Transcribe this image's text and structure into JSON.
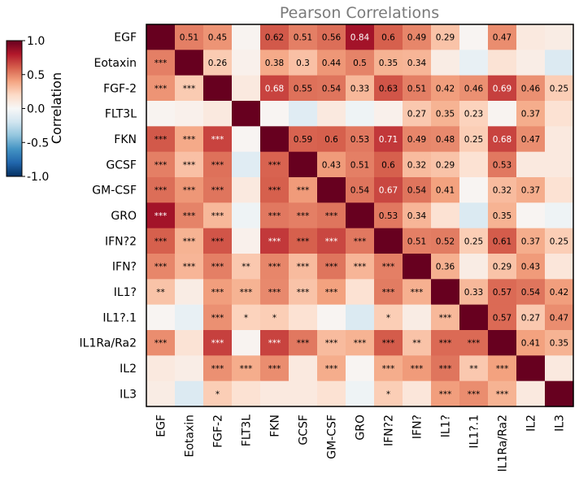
{
  "chart_data": {
    "type": "heatmap",
    "title": "Pearson Correlations",
    "variables": [
      "EGF",
      "Eotaxin",
      "FGF-2",
      "FLT3L",
      "FKN",
      "GCSF",
      "GM-CSF",
      "GRO",
      "IFN?2",
      "IFN?",
      "IL1?",
      "IL1?.1",
      "IL1Ra/Ra2",
      "IL2",
      "IL3"
    ],
    "colorbar": {
      "label": "Correlation",
      "range": [
        -1.0,
        1.0
      ],
      "ticks": [
        "1.0",
        "0.5",
        "0.0",
        "-0.5",
        "-1.0"
      ],
      "tick_values": [
        1.0,
        0.5,
        0.0,
        -0.5,
        -1.0
      ],
      "colormap": [
        "#053061",
        "#2166ac",
        "#4393c3",
        "#92c5de",
        "#d1e5f0",
        "#f7f7f7",
        "#fddbc7",
        "#f4a582",
        "#d6604d",
        "#b2182b",
        "#67001f"
      ]
    },
    "values": [
      [
        1.0,
        0.51,
        0.45,
        0.03,
        0.62,
        0.51,
        0.56,
        0.84,
        0.6,
        0.49,
        0.29,
        0.02,
        0.47,
        0.1,
        0.08
      ],
      [
        0.51,
        1.0,
        0.26,
        0.05,
        0.38,
        0.3,
        0.44,
        0.5,
        0.35,
        0.34,
        0.08,
        -0.08,
        0.14,
        0.07,
        -0.14
      ],
      [
        0.45,
        0.26,
        1.0,
        0.1,
        0.68,
        0.55,
        0.54,
        0.33,
        0.63,
        0.51,
        0.42,
        0.46,
        0.69,
        0.46,
        0.25
      ],
      [
        0.03,
        0.05,
        0.1,
        1.0,
        0.02,
        -0.12,
        0.1,
        -0.05,
        0.05,
        0.27,
        0.35,
        0.23,
        0.03,
        0.37,
        0.15
      ],
      [
        0.62,
        0.38,
        0.68,
        0.02,
        1.0,
        0.59,
        0.6,
        0.53,
        0.71,
        0.49,
        0.48,
        0.25,
        0.68,
        0.47,
        0.1
      ],
      [
        0.51,
        0.3,
        0.55,
        -0.12,
        0.59,
        1.0,
        0.43,
        0.51,
        0.6,
        0.32,
        0.29,
        0.15,
        0.53,
        0.1,
        0.1
      ],
      [
        0.56,
        0.44,
        0.54,
        0.1,
        0.6,
        0.43,
        1.0,
        0.54,
        0.67,
        0.54,
        0.41,
        0.02,
        0.32,
        0.37,
        0.15
      ],
      [
        0.84,
        0.5,
        0.33,
        -0.05,
        0.53,
        0.51,
        0.54,
        1.0,
        0.53,
        0.34,
        0.15,
        -0.15,
        0.35,
        0.02,
        -0.05
      ],
      [
        0.6,
        0.35,
        0.63,
        0.05,
        0.71,
        0.6,
        0.67,
        0.53,
        1.0,
        0.51,
        0.52,
        0.25,
        0.61,
        0.37,
        0.25
      ],
      [
        0.49,
        0.34,
        0.51,
        0.27,
        0.49,
        0.32,
        0.54,
        0.34,
        0.51,
        1.0,
        0.36,
        0.08,
        0.29,
        0.43,
        0.12
      ],
      [
        0.29,
        0.08,
        0.42,
        0.35,
        0.48,
        0.29,
        0.41,
        0.15,
        0.52,
        0.36,
        1.0,
        0.33,
        0.57,
        0.54,
        0.42
      ],
      [
        0.02,
        -0.08,
        0.46,
        0.23,
        0.25,
        0.15,
        0.02,
        -0.15,
        0.25,
        0.08,
        0.33,
        1.0,
        0.57,
        0.27,
        0.47
      ],
      [
        0.47,
        0.14,
        0.69,
        0.03,
        0.68,
        0.53,
        0.32,
        0.35,
        0.61,
        0.29,
        0.57,
        0.57,
        1.0,
        0.41,
        0.35
      ],
      [
        0.1,
        0.07,
        0.46,
        0.37,
        0.47,
        0.1,
        0.37,
        0.02,
        0.37,
        0.43,
        0.54,
        0.27,
        0.41,
        1.0,
        0.1
      ],
      [
        0.08,
        -0.14,
        0.25,
        0.15,
        0.1,
        0.1,
        0.15,
        -0.05,
        0.25,
        0.12,
        0.42,
        0.47,
        0.35,
        0.1,
        1.0
      ]
    ],
    "upper_labels": [
      [
        "",
        "0.51",
        "0.45",
        "",
        "0.62",
        "0.51",
        "0.56",
        "0.84",
        "0.6",
        "0.49",
        "0.29",
        "",
        "0.47",
        "",
        ""
      ],
      [
        "",
        "",
        "0.26",
        "",
        "0.38",
        "0.3",
        "0.44",
        "0.5",
        "0.35",
        "0.34",
        "",
        "",
        "",
        "",
        ""
      ],
      [
        "",
        "",
        "",
        "",
        "0.68",
        "0.55",
        "0.54",
        "0.33",
        "0.63",
        "0.51",
        "0.42",
        "0.46",
        "0.69",
        "0.46",
        "0.25"
      ],
      [
        "",
        "",
        "",
        "",
        "",
        "",
        "",
        "",
        "",
        "0.27",
        "0.35",
        "0.23",
        "",
        "0.37",
        ""
      ],
      [
        "",
        "",
        "",
        "",
        "",
        "0.59",
        "0.6",
        "0.53",
        "0.71",
        "0.49",
        "0.48",
        "0.25",
        "0.68",
        "0.47",
        ""
      ],
      [
        "",
        "",
        "",
        "",
        "",
        "",
        "0.43",
        "0.51",
        "0.6",
        "0.32",
        "0.29",
        "",
        "0.53",
        "",
        ""
      ],
      [
        "",
        "",
        "",
        "",
        "",
        "",
        "",
        "0.54",
        "0.67",
        "0.54",
        "0.41",
        "",
        "0.32",
        "0.37",
        ""
      ],
      [
        "",
        "",
        "",
        "",
        "",
        "",
        "",
        "",
        "0.53",
        "0.34",
        "",
        "",
        "0.35",
        "",
        ""
      ],
      [
        "",
        "",
        "",
        "",
        "",
        "",
        "",
        "",
        "",
        "0.51",
        "0.52",
        "0.25",
        "0.61",
        "0.37",
        "0.25"
      ],
      [
        "",
        "",
        "",
        "",
        "",
        "",
        "",
        "",
        "",
        "",
        "0.36",
        "",
        "0.29",
        "0.43",
        ""
      ],
      [
        "",
        "",
        "",
        "",
        "",
        "",
        "",
        "",
        "",
        "",
        "",
        "0.33",
        "0.57",
        "0.54",
        "0.42"
      ],
      [
        "",
        "",
        "",
        "",
        "",
        "",
        "",
        "",
        "",
        "",
        "",
        "",
        "0.57",
        "0.27",
        "0.47"
      ],
      [
        "",
        "",
        "",
        "",
        "",
        "",
        "",
        "",
        "",
        "",
        "",
        "",
        "",
        "0.41",
        "0.35"
      ],
      [
        "",
        "",
        "",
        "",
        "",
        "",
        "",
        "",
        "",
        "",
        "",
        "",
        "",
        "",
        ""
      ],
      [
        "",
        "",
        "",
        "",
        "",
        "",
        "",
        "",
        "",
        "",
        "",
        "",
        "",
        "",
        ""
      ]
    ],
    "lower_labels": [
      [
        "",
        "",
        "",
        "",
        "",
        "",
        "",
        "",
        "",
        "",
        "",
        "",
        "",
        "",
        ""
      ],
      [
        "***",
        "",
        "",
        "",
        "",
        "",
        "",
        "",
        "",
        "",
        "",
        "",
        "",
        "",
        ""
      ],
      [
        "***",
        "***",
        "",
        "",
        "",
        "",
        "",
        "",
        "",
        "",
        "",
        "",
        "",
        "",
        ""
      ],
      [
        "",
        "",
        "",
        "",
        "",
        "",
        "",
        "",
        "",
        "",
        "",
        "",
        "",
        "",
        ""
      ],
      [
        "***",
        "***",
        "***",
        "",
        "",
        "",
        "",
        "",
        "",
        "",
        "",
        "",
        "",
        "",
        ""
      ],
      [
        "***",
        "***",
        "***",
        "",
        "***",
        "",
        "",
        "",
        "",
        "",
        "",
        "",
        "",
        "",
        ""
      ],
      [
        "***",
        "***",
        "***",
        "",
        "***",
        "***",
        "",
        "",
        "",
        "",
        "",
        "",
        "",
        "",
        ""
      ],
      [
        "***",
        "***",
        "***",
        "",
        "***",
        "***",
        "***",
        "",
        "",
        "",
        "",
        "",
        "",
        "",
        ""
      ],
      [
        "***",
        "***",
        "***",
        "",
        "***",
        "***",
        "***",
        "***",
        "",
        "",
        "",
        "",
        "",
        "",
        ""
      ],
      [
        "***",
        "***",
        "***",
        "**",
        "***",
        "***",
        "***",
        "***",
        "***",
        "",
        "",
        "",
        "",
        "",
        ""
      ],
      [
        "**",
        "",
        "***",
        "***",
        "***",
        "***",
        "***",
        "",
        "***",
        "***",
        "",
        "",
        "",
        "",
        ""
      ],
      [
        "",
        "",
        "***",
        "*",
        "*",
        "",
        "",
        "",
        "*",
        "",
        "***",
        "",
        "",
        "",
        ""
      ],
      [
        "***",
        "",
        "***",
        "",
        "***",
        "***",
        "***",
        "***",
        "***",
        "**",
        "***",
        "***",
        "",
        "",
        ""
      ],
      [
        "",
        "",
        "***",
        "***",
        "***",
        "",
        "***",
        "",
        "***",
        "***",
        "***",
        "**",
        "***",
        "",
        ""
      ],
      [
        "",
        "",
        "*",
        "",
        "",
        "",
        "",
        "",
        "*",
        "",
        "***",
        "***",
        "***",
        "",
        ""
      ]
    ]
  }
}
